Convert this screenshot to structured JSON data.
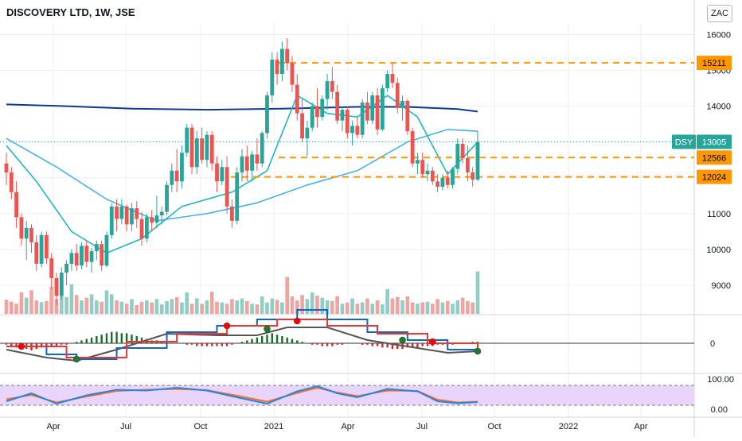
{
  "header": {
    "title": "DISCOVERY LTD, 1W, JSE",
    "currency": "ZAC"
  },
  "colors": {
    "up": "#26a69a",
    "down": "#ef5350",
    "vol_up": "#8fcdc5",
    "vol_down": "#f0a3a0",
    "ma_long": "#0d3a8e",
    "ma_mid": "#46b3e6",
    "ma_short": "#21b5c5",
    "level": "#ff9800",
    "grid": "#eceff3",
    "text": "#131722",
    "macd_blue": "#1565c0",
    "macd_red": "#e53935",
    "macd_black": "#555555",
    "hist_up": "#1b6b2a",
    "hist_down": "#c62828",
    "stoch_fill": "#e9d4fb",
    "stoch_blue": "#1e88e5",
    "stoch_orange": "#ff6d1f",
    "badge_dsy": "#26a69a"
  },
  "chart_data": {
    "type": "candlestick",
    "title": "DISCOVERY LTD, 1W, JSE",
    "price_axis": {
      "ticks": [
        9000,
        10000,
        11000,
        12000,
        13000,
        14000,
        15000,
        16000
      ],
      "ylim": [
        8200,
        16300
      ]
    },
    "time_axis": {
      "labels": [
        "Apr",
        "Jul",
        "Oct",
        "2021",
        "Apr",
        "Jul",
        "Oct",
        "2022",
        "Apr"
      ]
    },
    "levels": [
      15211,
      12566,
      12024
    ],
    "last_price": {
      "symbol": "DSY",
      "value": 13005
    },
    "ohlc": [
      [
        12400,
        12700,
        11800,
        12150
      ],
      [
        12150,
        12300,
        11400,
        11600
      ],
      [
        11600,
        11900,
        10600,
        10900
      ],
      [
        10900,
        11000,
        10100,
        10300
      ],
      [
        10300,
        10800,
        9700,
        10600
      ],
      [
        10600,
        10700,
        9900,
        10200
      ],
      [
        10200,
        10400,
        9400,
        9600
      ],
      [
        9600,
        10500,
        9500,
        10400
      ],
      [
        10400,
        10500,
        9600,
        9750
      ],
      [
        9750,
        9900,
        8900,
        9200
      ],
      [
        9200,
        9350,
        8450,
        8700
      ],
      [
        8700,
        9500,
        8600,
        9350
      ],
      [
        9350,
        9700,
        9000,
        9600
      ],
      [
        9600,
        10000,
        9400,
        9900
      ],
      [
        9900,
        10150,
        9400,
        9550
      ],
      [
        9550,
        10200,
        9450,
        10100
      ],
      [
        10100,
        10250,
        9500,
        9650
      ],
      [
        9650,
        10050,
        9350,
        9950
      ],
      [
        9950,
        10250,
        9700,
        10150
      ],
      [
        10150,
        10250,
        9400,
        9550
      ],
      [
        9550,
        10500,
        9500,
        10400
      ],
      [
        10400,
        11300,
        10300,
        11200
      ],
      [
        11200,
        11400,
        10500,
        10850
      ],
      [
        10850,
        11400,
        10700,
        11200
      ],
      [
        11200,
        11250,
        10500,
        10700
      ],
      [
        10700,
        11300,
        10500,
        11150
      ],
      [
        11150,
        11350,
        10600,
        10850
      ],
      [
        10850,
        11050,
        10100,
        10300
      ],
      [
        10300,
        11000,
        10200,
        10900
      ],
      [
        10900,
        11100,
        10500,
        10750
      ],
      [
        10750,
        11500,
        10600,
        10950
      ],
      [
        10950,
        11200,
        10700,
        11050
      ],
      [
        11050,
        11900,
        10950,
        11800
      ],
      [
        11800,
        12400,
        11600,
        12200
      ],
      [
        12200,
        12800,
        11600,
        11900
      ],
      [
        11900,
        12900,
        11700,
        12700
      ],
      [
        12700,
        13500,
        12600,
        13400
      ],
      [
        13400,
        13500,
        12100,
        12300
      ],
      [
        12300,
        13300,
        12100,
        13100
      ],
      [
        13100,
        13400,
        12400,
        12500
      ],
      [
        12500,
        13300,
        12300,
        13200
      ],
      [
        13200,
        13300,
        12200,
        12400
      ],
      [
        12400,
        12600,
        11600,
        11900
      ],
      [
        11900,
        12500,
        11800,
        12300
      ],
      [
        12300,
        12600,
        11000,
        11200
      ],
      [
        11200,
        11400,
        10600,
        10800
      ],
      [
        10800,
        12300,
        10700,
        12150
      ],
      [
        12150,
        12800,
        11900,
        12600
      ],
      [
        12600,
        12900,
        11900,
        12200
      ],
      [
        12200,
        12750,
        11900,
        12650
      ],
      [
        12650,
        13100,
        12200,
        12400
      ],
      [
        12400,
        13300,
        12300,
        13250
      ],
      [
        13250,
        14400,
        13100,
        14300
      ],
      [
        14300,
        15500,
        14100,
        15300
      ],
      [
        15300,
        15500,
        14600,
        14900
      ],
      [
        14900,
        15800,
        14700,
        15600
      ],
      [
        15600,
        15900,
        15000,
        15200
      ],
      [
        15200,
        15400,
        14400,
        14600
      ],
      [
        14600,
        14900,
        13600,
        13800
      ],
      [
        13800,
        14200,
        13000,
        13100
      ],
      [
        13100,
        13600,
        12600,
        13400
      ],
      [
        13400,
        14100,
        13300,
        14000
      ],
      [
        14000,
        14500,
        13400,
        13700
      ],
      [
        13700,
        14300,
        13600,
        14200
      ],
      [
        14200,
        14900,
        13900,
        14700
      ],
      [
        14700,
        15100,
        14200,
        14400
      ],
      [
        14400,
        14600,
        13500,
        13600
      ],
      [
        13600,
        14000,
        13300,
        13900
      ],
      [
        13900,
        14000,
        13100,
        13250
      ],
      [
        13250,
        13600,
        12900,
        13450
      ],
      [
        13450,
        13700,
        13100,
        13200
      ],
      [
        13200,
        14200,
        13100,
        14100
      ],
      [
        14100,
        14400,
        13500,
        13600
      ],
      [
        13600,
        14400,
        13500,
        14300
      ],
      [
        14300,
        14500,
        13200,
        13350
      ],
      [
        13350,
        14600,
        13300,
        14500
      ],
      [
        14500,
        15000,
        14400,
        14900
      ],
      [
        14900,
        15200,
        14500,
        14650
      ],
      [
        14650,
        14800,
        13800,
        13950
      ],
      [
        13950,
        14300,
        13600,
        14150
      ],
      [
        14150,
        14200,
        13200,
        13300
      ],
      [
        13300,
        13400,
        12300,
        12400
      ],
      [
        12400,
        12700,
        12100,
        12500
      ],
      [
        12500,
        12700,
        12000,
        12100
      ],
      [
        12100,
        12400,
        11900,
        12200
      ],
      [
        12200,
        12300,
        11800,
        11900
      ],
      [
        11900,
        12100,
        11600,
        11750
      ],
      [
        11750,
        12100,
        11650,
        12000
      ],
      [
        12000,
        12200,
        11700,
        11800
      ],
      [
        11800,
        12300,
        11700,
        12250
      ],
      [
        12250,
        13100,
        12100,
        12950
      ],
      [
        12950,
        13100,
        12400,
        12550
      ],
      [
        12550,
        12900,
        11900,
        12150
      ],
      [
        12150,
        12300,
        11750,
        11950
      ],
      [
        11950,
        13300,
        11900,
        13005
      ]
    ],
    "volume": [
      42,
      36,
      30,
      64,
      48,
      70,
      40,
      35,
      38,
      80,
      44,
      90,
      50,
      88,
      56,
      40,
      48,
      58,
      40,
      36,
      70,
      58,
      40,
      36,
      30,
      44,
      26,
      36,
      40,
      34,
      44,
      28,
      38,
      44,
      50,
      34,
      64,
      30,
      46,
      30,
      40,
      66,
      36,
      34,
      30,
      44,
      40,
      46,
      38,
      30,
      28,
      52,
      34,
      46,
      42,
      34,
      110,
      52,
      40,
      56,
      44,
      64,
      54,
      48,
      40,
      38,
      52,
      30,
      34,
      46,
      30,
      34,
      46,
      30,
      40,
      28,
      74,
      46,
      50,
      40,
      52,
      34,
      30,
      34,
      36,
      30,
      44,
      34,
      38,
      30,
      40,
      48,
      38,
      34,
      126
    ],
    "ma_long": [
      [
        0,
        14050
      ],
      [
        12,
        14000
      ],
      [
        25,
        13930
      ],
      [
        40,
        13900
      ],
      [
        55,
        13930
      ],
      [
        70,
        13980
      ],
      [
        80,
        13980
      ],
      [
        90,
        13920
      ],
      [
        94,
        13850
      ]
    ],
    "ma_mid": [
      [
        0,
        13100
      ],
      [
        10,
        12300
      ],
      [
        20,
        11400
      ],
      [
        30,
        10800
      ],
      [
        40,
        11000
      ],
      [
        50,
        11300
      ],
      [
        60,
        11800
      ],
      [
        70,
        12200
      ],
      [
        80,
        13000
      ],
      [
        88,
        13350
      ],
      [
        94,
        13300
      ]
    ],
    "ma_short": [
      [
        0,
        12900
      ],
      [
        6,
        11900
      ],
      [
        13,
        10500
      ],
      [
        20,
        9900
      ],
      [
        27,
        10300
      ],
      [
        35,
        11200
      ],
      [
        45,
        11600
      ],
      [
        52,
        12200
      ],
      [
        58,
        14300
      ],
      [
        64,
        13800
      ],
      [
        70,
        13700
      ],
      [
        76,
        14300
      ],
      [
        82,
        13700
      ],
      [
        88,
        12100
      ],
      [
        94,
        13000
      ]
    ],
    "macd": {
      "zero_label": "0",
      "histogram": [
        -1,
        -2,
        -3,
        -4,
        -4,
        -5,
        -4,
        -3,
        -3,
        -2,
        -2,
        -1,
        -1,
        0,
        1,
        2,
        3,
        4,
        5,
        6,
        7,
        8,
        8,
        7,
        7,
        6,
        5,
        4,
        3,
        2,
        2,
        1,
        1,
        0,
        0,
        0,
        -1,
        -1,
        -2,
        -2,
        -2,
        -2,
        -2,
        -2,
        -2,
        -1,
        0,
        1,
        2,
        3,
        4,
        5,
        6,
        7,
        6,
        5,
        4,
        3,
        2,
        1,
        0,
        -1,
        -1,
        -2,
        -2,
        -2,
        -1,
        -1,
        0,
        0,
        0,
        -1,
        -1,
        -2,
        -2,
        -3,
        -3,
        -4,
        -4,
        -4,
        -3,
        -3,
        -3,
        -2,
        -2,
        -2,
        -1,
        -1,
        -1,
        -1,
        0,
        0,
        0,
        1,
        1
      ],
      "signal_points": [
        [
          0,
          -4
        ],
        [
          12,
          -18
        ],
        [
          24,
          2
        ],
        [
          34,
          12
        ],
        [
          44,
          22
        ],
        [
          54,
          30
        ],
        [
          64,
          22
        ],
        [
          74,
          12
        ],
        [
          84,
          0
        ],
        [
          94,
          -8
        ]
      ],
      "macd_points": [
        [
          0,
          -4
        ],
        [
          8,
          -14
        ],
        [
          14,
          -20
        ],
        [
          22,
          -6
        ],
        [
          32,
          14
        ],
        [
          42,
          22
        ],
        [
          50,
          30
        ],
        [
          58,
          42
        ],
        [
          64,
          30
        ],
        [
          72,
          14
        ],
        [
          80,
          4
        ],
        [
          88,
          -8
        ],
        [
          94,
          -10
        ]
      ],
      "black_points": [
        [
          0,
          -8
        ],
        [
          8,
          -18
        ],
        [
          14,
          -22
        ],
        [
          22,
          -8
        ],
        [
          32,
          12
        ],
        [
          42,
          10
        ],
        [
          50,
          10
        ],
        [
          56,
          20
        ],
        [
          64,
          20
        ],
        [
          72,
          4
        ],
        [
          80,
          -4
        ],
        [
          88,
          -12
        ],
        [
          94,
          -10
        ]
      ],
      "markers": [
        {
          "i": 3,
          "v": -4,
          "c": "red"
        },
        {
          "i": 14,
          "v": -20,
          "c": "green"
        },
        {
          "i": 44,
          "v": 22,
          "c": "red"
        },
        {
          "i": 52,
          "v": 18,
          "c": "green"
        },
        {
          "i": 58,
          "v": 28,
          "c": "red"
        },
        {
          "i": 79,
          "v": 4,
          "c": "green"
        },
        {
          "i": 85,
          "v": 2,
          "c": "red"
        },
        {
          "i": 94,
          "v": -10,
          "c": "green"
        }
      ]
    },
    "stoch": {
      "ticks": [
        "100.00",
        "0.00"
      ],
      "blue": [
        [
          0,
          20
        ],
        [
          5,
          60
        ],
        [
          10,
          8
        ],
        [
          16,
          50
        ],
        [
          22,
          78
        ],
        [
          28,
          74
        ],
        [
          34,
          88
        ],
        [
          40,
          74
        ],
        [
          46,
          40
        ],
        [
          52,
          8
        ],
        [
          58,
          70
        ],
        [
          62,
          96
        ],
        [
          66,
          60
        ],
        [
          70,
          40
        ],
        [
          76,
          82
        ],
        [
          82,
          70
        ],
        [
          86,
          20
        ],
        [
          90,
          10
        ],
        [
          94,
          16
        ]
      ],
      "orange": [
        [
          0,
          30
        ],
        [
          5,
          52
        ],
        [
          10,
          14
        ],
        [
          16,
          44
        ],
        [
          22,
          72
        ],
        [
          28,
          78
        ],
        [
          34,
          82
        ],
        [
          40,
          76
        ],
        [
          46,
          48
        ],
        [
          52,
          18
        ],
        [
          58,
          62
        ],
        [
          62,
          88
        ],
        [
          66,
          64
        ],
        [
          70,
          46
        ],
        [
          76,
          74
        ],
        [
          82,
          72
        ],
        [
          86,
          28
        ],
        [
          90,
          14
        ],
        [
          94,
          18
        ]
      ]
    }
  }
}
